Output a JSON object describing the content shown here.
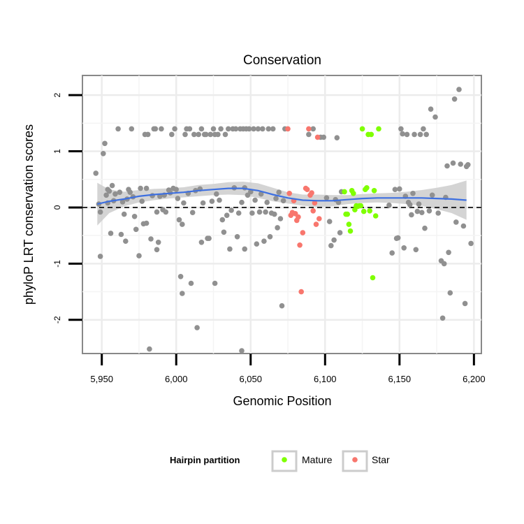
{
  "chart_data": {
    "type": "scatter",
    "title": "Conservation",
    "xlabel": "Genomic Position",
    "ylabel": "phyloP LRT conservation scores",
    "xlim": [
      5937,
      6205
    ],
    "ylim": [
      -2.6,
      2.35
    ],
    "x_ticks": [
      5950,
      6000,
      6050,
      6100,
      6150,
      6200
    ],
    "x_tick_labels": [
      "5,950",
      "6,000",
      "6,050",
      "6,100",
      "6,150",
      "6,200"
    ],
    "y_ticks": [
      -2,
      -1,
      0,
      1,
      2
    ],
    "y_tick_labels": [
      "-2",
      "-1",
      "0",
      "1",
      "2"
    ],
    "grid": true,
    "reference_line": {
      "y": 0,
      "style": "dashed"
    },
    "legend": {
      "title": "Hairpin partition",
      "position": "bottom",
      "entries": [
        {
          "label": "Mature",
          "color": "#7fff00"
        },
        {
          "label": "Star",
          "color": "#f8766d"
        }
      ]
    },
    "colors": {
      "other": "#909090",
      "mature": "#7fff00",
      "star": "#f8766d",
      "smooth": "#3d6fe0",
      "band": "#cccccc",
      "panel_border": "#888888"
    },
    "series": [
      {
        "name": "",
        "group": "other",
        "points": [
          [
            5946,
            0.61
          ],
          [
            5948,
            0.06
          ],
          [
            5949,
            -0.08
          ],
          [
            5949,
            -0.87
          ],
          [
            5951,
            0.96
          ],
          [
            5952,
            1.14
          ],
          [
            5953,
            0.22
          ],
          [
            5954,
            0.08
          ],
          [
            5954,
            0.32
          ],
          [
            5955,
            0.29
          ],
          [
            5956,
            -0.46
          ],
          [
            5957,
            0.39
          ],
          [
            5958,
            0.12
          ],
          [
            5959,
            0.24
          ],
          [
            5961,
            1.4
          ],
          [
            5962,
            0.27
          ],
          [
            5963,
            -0.48
          ],
          [
            5964,
            0.1
          ],
          [
            5965,
            -0.12
          ],
          [
            5966,
            -0.6
          ],
          [
            5967,
            0.15
          ],
          [
            5968,
            0.32
          ],
          [
            5969,
            0.27
          ],
          [
            5970,
            1.4
          ],
          [
            5971,
            0.19
          ],
          [
            5972,
            -0.16
          ],
          [
            5973,
            -0.39
          ],
          [
            5975,
            -0.86
          ],
          [
            5976,
            0.34
          ],
          [
            5977,
            0.11
          ],
          [
            5978,
            -0.29
          ],
          [
            5979,
            1.3
          ],
          [
            5980,
            0.34
          ],
          [
            5980,
            -0.28
          ],
          [
            5981,
            1.3
          ],
          [
            5982,
            -2.52
          ],
          [
            5983,
            -0.56
          ],
          [
            5984,
            0.21
          ],
          [
            5985,
            1.4
          ],
          [
            5986,
            1.4
          ],
          [
            5987,
            -0.08
          ],
          [
            5987,
            -0.75
          ],
          [
            5988,
            -0.62
          ],
          [
            5989,
            0.2
          ],
          [
            5990,
            1.4
          ],
          [
            5991,
            -0.04
          ],
          [
            5992,
            0.22
          ],
          [
            5993,
            -0.08
          ],
          [
            5995,
            0.31
          ],
          [
            5996,
            0.26
          ],
          [
            5997,
            1.3
          ],
          [
            5998,
            0.34
          ],
          [
            5999,
            1.4
          ],
          [
            6000,
            0.32
          ],
          [
            6001,
            0.16
          ],
          [
            6002,
            -0.22
          ],
          [
            6003,
            -1.23
          ],
          [
            6004,
            -1.53
          ],
          [
            6004,
            -0.3
          ],
          [
            6005,
            0.08
          ],
          [
            6006,
            1.3
          ],
          [
            6007,
            1.4
          ],
          [
            6008,
            0.25
          ],
          [
            6009,
            1.4
          ],
          [
            6010,
            -1.35
          ],
          [
            6011,
            -0.09
          ],
          [
            6012,
            1.3
          ],
          [
            6013,
            0.3
          ],
          [
            6014,
            -2.14
          ],
          [
            6015,
            1.3
          ],
          [
            6016,
            0.33
          ],
          [
            6017,
            -0.62
          ],
          [
            6017,
            1.4
          ],
          [
            6018,
            0.08
          ],
          [
            6019,
            1.3
          ],
          [
            6020,
            1.3
          ],
          [
            6021,
            -0.55
          ],
          [
            6022,
            -0.55
          ],
          [
            6023,
            1.3
          ],
          [
            6024,
            0.11
          ],
          [
            6025,
            1.4
          ],
          [
            6026,
            -1.35
          ],
          [
            6026,
            1.3
          ],
          [
            6027,
            0.24
          ],
          [
            6028,
            1.3
          ],
          [
            6029,
            0.13
          ],
          [
            6030,
            1.4
          ],
          [
            6031,
            -0.22
          ],
          [
            6032,
            -0.44
          ],
          [
            6033,
            1.3
          ],
          [
            6034,
            -0.14
          ],
          [
            6035,
            1.4
          ],
          [
            6036,
            -0.74
          ],
          [
            6037,
            -0.05
          ],
          [
            6038,
            1.4
          ],
          [
            6039,
            0.35
          ],
          [
            6040,
            1.4
          ],
          [
            6041,
            -0.52
          ],
          [
            6042,
            -0.1
          ],
          [
            6043,
            1.4
          ],
          [
            6044,
            -2.55
          ],
          [
            6044,
            0.09
          ],
          [
            6045,
            1.4
          ],
          [
            6046,
            0.35
          ],
          [
            6046,
            -0.74
          ],
          [
            6047,
            1.4
          ],
          [
            6048,
            0.22
          ],
          [
            6049,
            1.4
          ],
          [
            6050,
            0.28
          ],
          [
            6051,
            -0.1
          ],
          [
            6052,
            1.4
          ],
          [
            6053,
            0.13
          ],
          [
            6054,
            -0.65
          ],
          [
            6055,
            1.4
          ],
          [
            6056,
            -0.08
          ],
          [
            6057,
            0.24
          ],
          [
            6058,
            1.4
          ],
          [
            6059,
            -0.6
          ],
          [
            6060,
            -0.08
          ],
          [
            6061,
            0.09
          ],
          [
            6062,
            1.4
          ],
          [
            6063,
            -0.52
          ],
          [
            6064,
            -0.1
          ],
          [
            6065,
            1.4
          ],
          [
            6066,
            -0.12
          ],
          [
            6067,
            0.16
          ],
          [
            6068,
            -0.36
          ],
          [
            6069,
            0.27
          ],
          [
            6070,
            -0.2
          ],
          [
            6071,
            -1.75
          ],
          [
            6072,
            0.12
          ],
          [
            6073,
            1.4
          ],
          [
            6089,
            1.3
          ],
          [
            6092,
            1.4
          ],
          [
            6097,
            1.25
          ],
          [
            6099,
            1.25
          ],
          [
            6101,
            0.17
          ],
          [
            6103,
            -0.25
          ],
          [
            6104,
            -0.68
          ],
          [
            6106,
            -0.58
          ],
          [
            6107,
            0.14
          ],
          [
            6108,
            1.24
          ],
          [
            6109,
            0.09
          ],
          [
            6110,
            -0.45
          ],
          [
            6111,
            0.28
          ],
          [
            6143,
            0.04
          ],
          [
            6145,
            -0.81
          ],
          [
            6147,
            0.32
          ],
          [
            6148,
            -0.55
          ],
          [
            6149,
            -0.54
          ],
          [
            6150,
            0.33
          ],
          [
            6151,
            1.4
          ],
          [
            6152,
            1.31
          ],
          [
            6153,
            -0.72
          ],
          [
            6154,
            0.2
          ],
          [
            6155,
            1.3
          ],
          [
            6156,
            0.09
          ],
          [
            6157,
            0.05
          ],
          [
            6158,
            -0.13
          ],
          [
            6159,
            0.25
          ],
          [
            6160,
            1.3
          ],
          [
            6161,
            -0.75
          ],
          [
            6162,
            -0.07
          ],
          [
            6163,
            0.06
          ],
          [
            6164,
            1.3
          ],
          [
            6165,
            -0.09
          ],
          [
            6166,
            1.4
          ],
          [
            6167,
            -0.37
          ],
          [
            6168,
            1.3
          ],
          [
            6170,
            -0.06
          ],
          [
            6171,
            1.75
          ],
          [
            6172,
            0.22
          ],
          [
            6174,
            1.61
          ],
          [
            6176,
            -0.1
          ],
          [
            6178,
            -0.95
          ],
          [
            6179,
            -1.97
          ],
          [
            6180,
            -1.0
          ],
          [
            6181,
            0.18
          ],
          [
            6182,
            0.74
          ],
          [
            6183,
            -0.8
          ],
          [
            6184,
            -1.52
          ],
          [
            6186,
            0.79
          ],
          [
            6187,
            1.93
          ],
          [
            6188,
            -0.26
          ],
          [
            6190,
            2.1
          ],
          [
            6191,
            0.77
          ],
          [
            6193,
            -0.33
          ],
          [
            6194,
            -1.71
          ],
          [
            6195,
            0.73
          ],
          [
            6196,
            0.76
          ],
          [
            6198,
            -0.64
          ]
        ]
      },
      {
        "name": "Star",
        "group": "star",
        "points": [
          [
            6075,
            1.4
          ],
          [
            6076,
            0.25
          ],
          [
            6077,
            -0.14
          ],
          [
            6078,
            -0.09
          ],
          [
            6079,
            0.12
          ],
          [
            6080,
            -0.11
          ],
          [
            6081,
            -0.23
          ],
          [
            6082,
            -0.17
          ],
          [
            6083,
            -0.67
          ],
          [
            6084,
            -1.5
          ],
          [
            6085,
            -0.45
          ],
          [
            6087,
            0.34
          ],
          [
            6088,
            0.32
          ],
          [
            6089,
            1.4
          ],
          [
            6090,
            0.22
          ],
          [
            6091,
            0.26
          ],
          [
            6092,
            -0.06
          ],
          [
            6093,
            0.08
          ],
          [
            6094,
            -0.3
          ],
          [
            6095,
            1.25
          ],
          [
            6096,
            -0.2
          ]
        ]
      },
      {
        "name": "Mature",
        "group": "mature",
        "points": [
          [
            6113,
            0.28
          ],
          [
            6114,
            -0.12
          ],
          [
            6115,
            -0.12
          ],
          [
            6116,
            -0.3
          ],
          [
            6117,
            -0.42
          ],
          [
            6118,
            0.3
          ],
          [
            6119,
            0.25
          ],
          [
            6120,
            -0.04
          ],
          [
            6121,
            0.03
          ],
          [
            6122,
            0.02
          ],
          [
            6123,
            0.03
          ],
          [
            6124,
            0.03
          ],
          [
            6125,
            1.4
          ],
          [
            6126,
            -0.07
          ],
          [
            6127,
            0.32
          ],
          [
            6128,
            0.35
          ],
          [
            6129,
            1.3
          ],
          [
            6130,
            -0.06
          ],
          [
            6131,
            1.3
          ],
          [
            6132,
            -1.25
          ],
          [
            6133,
            0.3
          ],
          [
            6134,
            -0.15
          ],
          [
            6136,
            1.4
          ]
        ]
      }
    ],
    "smooth": {
      "x": [
        5947,
        5955,
        5965,
        5975,
        5985,
        5995,
        6005,
        6015,
        6025,
        6035,
        6045,
        6055,
        6065,
        6075,
        6085,
        6095,
        6105,
        6115,
        6125,
        6135,
        6145,
        6155,
        6165,
        6175,
        6185,
        6195
      ],
      "y": [
        0.06,
        0.11,
        0.15,
        0.2,
        0.23,
        0.25,
        0.27,
        0.3,
        0.32,
        0.34,
        0.34,
        0.3,
        0.23,
        0.17,
        0.13,
        0.12,
        0.12,
        0.14,
        0.16,
        0.17,
        0.17,
        0.17,
        0.17,
        0.16,
        0.15,
        0.13
      ],
      "lower": [
        -0.32,
        -0.1,
        0.02,
        0.09,
        0.13,
        0.16,
        0.18,
        0.2,
        0.22,
        0.23,
        0.22,
        0.17,
        0.11,
        0.07,
        0.03,
        0.01,
        0.02,
        0.06,
        0.08,
        0.09,
        0.08,
        0.06,
        0.03,
        -0.03,
        -0.1,
        -0.22
      ],
      "upper": [
        0.44,
        0.32,
        0.28,
        0.31,
        0.33,
        0.34,
        0.36,
        0.4,
        0.42,
        0.45,
        0.46,
        0.43,
        0.35,
        0.27,
        0.23,
        0.23,
        0.22,
        0.22,
        0.24,
        0.25,
        0.26,
        0.28,
        0.31,
        0.35,
        0.4,
        0.48
      ]
    }
  }
}
